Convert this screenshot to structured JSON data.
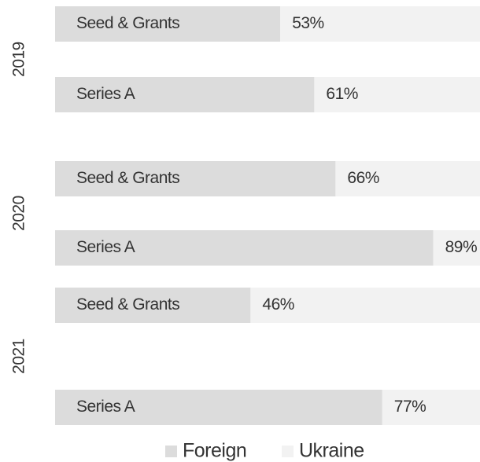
{
  "chart_data": {
    "type": "bar",
    "stacked": true,
    "orientation": "horizontal",
    "groups": [
      "2019",
      "2020",
      "2021"
    ],
    "categories": [
      "Seed & Grants",
      "Series A",
      "Seed & Grants",
      "Series A",
      "Seed & Grants",
      "Series A"
    ],
    "series": [
      {
        "name": "Foreign",
        "color": "#dcdcdc",
        "values": [
          53,
          61,
          66,
          89,
          46,
          77
        ],
        "value_labels": [
          "53%",
          "61%",
          "66%",
          "89%",
          "46%",
          "77%"
        ]
      },
      {
        "name": "Ukraine",
        "color": "#f2f2f2",
        "values": [
          47,
          39,
          34,
          11,
          54,
          23
        ]
      }
    ],
    "xlim": [
      0,
      100
    ]
  }
}
